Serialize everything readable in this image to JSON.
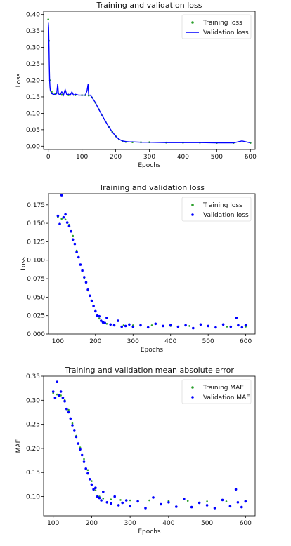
{
  "chart_data": [
    {
      "type": "line",
      "title": "Training and validation loss",
      "xlabel": "Epochs",
      "ylabel": "Loss",
      "xlim": [
        -14,
        614
      ],
      "ylim": [
        -0.01,
        0.41
      ],
      "xticks": [
        0,
        100,
        200,
        300,
        400,
        500,
        600
      ],
      "yticks": [
        0.0,
        0.05,
        0.1,
        0.15,
        0.2,
        0.25,
        0.3,
        0.35,
        0.4
      ],
      "xtick_labels": [
        "0",
        "100",
        "200",
        "300",
        "400",
        "500",
        "600"
      ],
      "ytick_labels": [
        "0.00",
        "0.05",
        "0.10",
        "0.15",
        "0.20",
        "0.25",
        "0.30",
        "0.35",
        "0.40"
      ],
      "legend_position": "top-right",
      "series": [
        {
          "name": "Training loss",
          "style": "dots",
          "color": "#2ca02c",
          "x": [
            0,
            2,
            5,
            10,
            20,
            40,
            60,
            80,
            100,
            110,
            120,
            130,
            140,
            150,
            160,
            170,
            180,
            190,
            200,
            210,
            220,
            230,
            250,
            275,
            300,
            350,
            400,
            450,
            500,
            550,
            600
          ],
          "y": [
            0.385,
            0.32,
            0.2,
            0.165,
            0.158,
            0.156,
            0.155,
            0.155,
            0.155,
            0.155,
            0.154,
            0.148,
            0.132,
            0.112,
            0.093,
            0.075,
            0.058,
            0.043,
            0.03,
            0.02,
            0.015,
            0.013,
            0.012,
            0.012,
            0.012,
            0.011,
            0.011,
            0.011,
            0.01,
            0.01,
            0.01
          ]
        },
        {
          "name": "Validation loss",
          "style": "line",
          "color": "#0000ff",
          "x": [
            0,
            1,
            2,
            3,
            4,
            5,
            6,
            8,
            10,
            15,
            20,
            25,
            28,
            30,
            35,
            40,
            45,
            50,
            55,
            60,
            65,
            70,
            75,
            80,
            90,
            100,
            110,
            115,
            118,
            120,
            125,
            130,
            140,
            150,
            160,
            170,
            180,
            190,
            200,
            210,
            220,
            230,
            240,
            250,
            275,
            300,
            350,
            400,
            450,
            500,
            550,
            575,
            600
          ],
          "y": [
            0.375,
            0.36,
            0.3,
            0.25,
            0.2,
            0.18,
            0.17,
            0.165,
            0.16,
            0.158,
            0.156,
            0.16,
            0.19,
            0.16,
            0.155,
            0.165,
            0.155,
            0.172,
            0.156,
            0.158,
            0.155,
            0.165,
            0.155,
            0.158,
            0.155,
            0.155,
            0.155,
            0.168,
            0.188,
            0.155,
            0.155,
            0.148,
            0.132,
            0.112,
            0.093,
            0.075,
            0.058,
            0.043,
            0.03,
            0.021,
            0.016,
            0.014,
            0.013,
            0.013,
            0.012,
            0.012,
            0.011,
            0.011,
            0.011,
            0.01,
            0.01,
            0.016,
            0.01
          ]
        }
      ]
    },
    {
      "type": "scatter",
      "title": "Training and validation loss",
      "xlabel": "Epochs",
      "ylabel": "Loss",
      "xlim": [
        75,
        625
      ],
      "ylim": [
        0.0,
        0.19
      ],
      "xticks": [
        100,
        200,
        300,
        400,
        500,
        600
      ],
      "yticks": [
        0.0,
        0.025,
        0.05,
        0.075,
        0.1,
        0.125,
        0.15,
        0.175
      ],
      "xtick_labels": [
        "100",
        "200",
        "300",
        "400",
        "500",
        "600"
      ],
      "ytick_labels": [
        "0.000",
        "0.025",
        "0.050",
        "0.075",
        "0.100",
        "0.125",
        "0.150",
        "0.175"
      ],
      "legend_position": "top-right",
      "series": [
        {
          "name": "Training loss",
          "style": "dots",
          "color": "#2ca02c",
          "x": [
            100,
            110,
            120,
            130,
            140,
            150,
            160,
            170,
            180,
            190,
            200,
            210,
            220,
            230,
            250,
            275,
            300,
            350,
            400,
            450,
            500,
            550,
            600
          ],
          "y": [
            0.158,
            0.156,
            0.155,
            0.148,
            0.133,
            0.113,
            0.094,
            0.076,
            0.059,
            0.044,
            0.031,
            0.021,
            0.016,
            0.014,
            0.013,
            0.012,
            0.012,
            0.012,
            0.011,
            0.011,
            0.011,
            0.01,
            0.01
          ]
        },
        {
          "name": "Validation loss",
          "style": "dots",
          "color": "#0000ff",
          "x": [
            100,
            105,
            110,
            115,
            120,
            125,
            130,
            135,
            140,
            145,
            150,
            155,
            160,
            165,
            170,
            175,
            180,
            185,
            190,
            195,
            200,
            205,
            210,
            215,
            220,
            225,
            230,
            240,
            250,
            260,
            270,
            280,
            290,
            300,
            320,
            340,
            360,
            380,
            400,
            420,
            440,
            460,
            480,
            500,
            520,
            540,
            560,
            575,
            580,
            590,
            600
          ],
          "y": [
            0.16,
            0.149,
            0.188,
            0.158,
            0.162,
            0.151,
            0.146,
            0.139,
            0.128,
            0.122,
            0.111,
            0.104,
            0.094,
            0.086,
            0.077,
            0.07,
            0.06,
            0.052,
            0.045,
            0.038,
            0.031,
            0.025,
            0.024,
            0.018,
            0.016,
            0.015,
            0.022,
            0.013,
            0.012,
            0.018,
            0.01,
            0.011,
            0.013,
            0.01,
            0.012,
            0.009,
            0.014,
            0.011,
            0.012,
            0.01,
            0.012,
            0.008,
            0.013,
            0.011,
            0.009,
            0.013,
            0.01,
            0.022,
            0.012,
            0.009,
            0.012
          ]
        }
      ]
    },
    {
      "type": "scatter",
      "title": "Training and validation mean absolute error",
      "xlabel": "Epochs",
      "ylabel": "MAE",
      "xlim": [
        75,
        625
      ],
      "ylim": [
        0.06,
        0.35
      ],
      "xticks": [
        100,
        200,
        300,
        400,
        500,
        600
      ],
      "yticks": [
        0.1,
        0.15,
        0.2,
        0.25,
        0.3,
        0.35
      ],
      "xtick_labels": [
        "100",
        "200",
        "300",
        "400",
        "500",
        "600"
      ],
      "ytick_labels": [
        "0.10",
        "0.15",
        "0.20",
        "0.25",
        "0.30",
        "0.35"
      ],
      "legend_position": "top-right",
      "series": [
        {
          "name": "Training MAE",
          "style": "dots",
          "color": "#2ca02c",
          "x": [
            100,
            110,
            120,
            130,
            140,
            150,
            160,
            170,
            180,
            190,
            200,
            210,
            220,
            230,
            250,
            275,
            300,
            350,
            400,
            450,
            500,
            550,
            600
          ],
          "y": [
            0.315,
            0.312,
            0.31,
            0.3,
            0.28,
            0.252,
            0.226,
            0.202,
            0.178,
            0.155,
            0.132,
            0.113,
            0.1,
            0.096,
            0.094,
            0.093,
            0.092,
            0.092,
            0.091,
            0.091,
            0.09,
            0.09,
            0.09
          ]
        },
        {
          "name": "Validation MAE",
          "style": "dots",
          "color": "#0000ff",
          "x": [
            100,
            105,
            110,
            115,
            120,
            125,
            130,
            135,
            140,
            145,
            150,
            155,
            160,
            165,
            170,
            175,
            180,
            185,
            190,
            195,
            200,
            205,
            210,
            215,
            220,
            225,
            230,
            240,
            250,
            260,
            270,
            280,
            290,
            300,
            320,
            340,
            360,
            380,
            400,
            420,
            440,
            460,
            480,
            500,
            520,
            540,
            560,
            575,
            580,
            590,
            600
          ],
          "y": [
            0.318,
            0.305,
            0.338,
            0.31,
            0.318,
            0.305,
            0.298,
            0.282,
            0.275,
            0.262,
            0.248,
            0.238,
            0.224,
            0.21,
            0.198,
            0.186,
            0.172,
            0.158,
            0.148,
            0.136,
            0.125,
            0.115,
            0.118,
            0.1,
            0.097,
            0.092,
            0.11,
            0.088,
            0.086,
            0.1,
            0.082,
            0.087,
            0.092,
            0.08,
            0.09,
            0.076,
            0.098,
            0.084,
            0.088,
            0.079,
            0.095,
            0.078,
            0.087,
            0.082,
            0.076,
            0.093,
            0.08,
            0.115,
            0.088,
            0.078,
            0.09
          ]
        }
      ]
    }
  ]
}
